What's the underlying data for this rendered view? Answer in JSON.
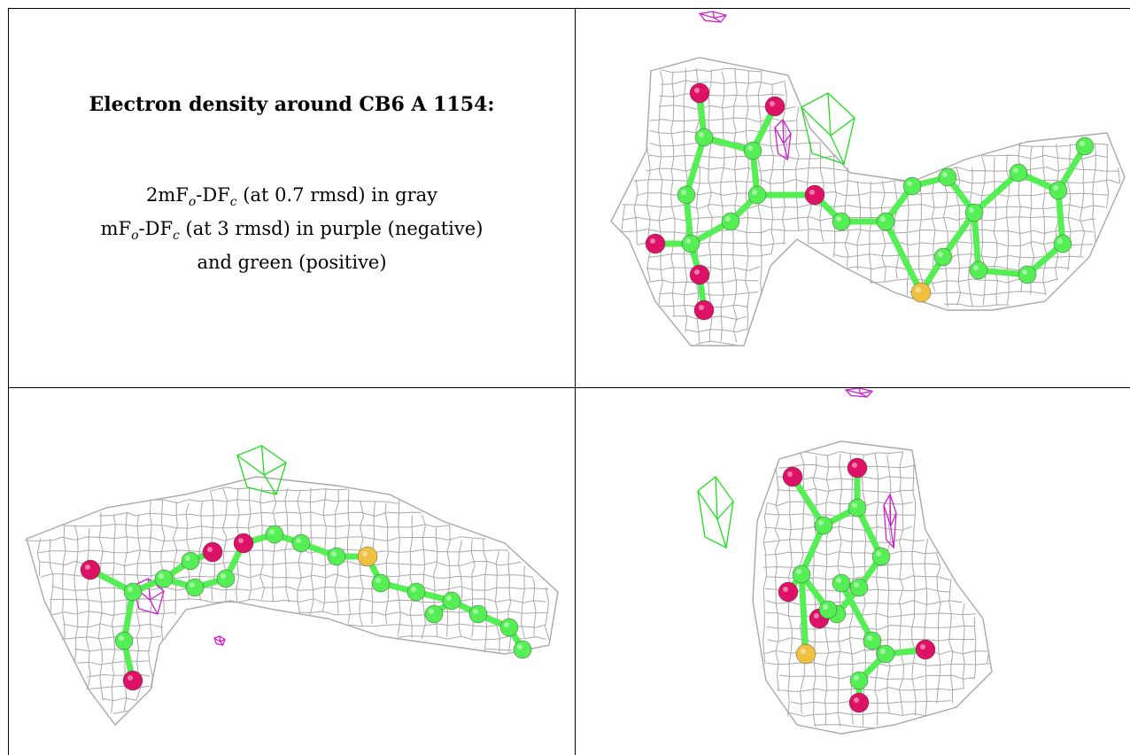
{
  "title": "Electron density around CB6 A 1154:",
  "legend": {
    "line1": {
      "a": "2mF",
      "sub1": "o",
      "b": "-DF",
      "sub2": "c",
      "c": " (at 0.7 rmsd) in gray"
    },
    "line2": {
      "a": "mF",
      "sub1": "o",
      "b": "-DF",
      "sub2": "c",
      "c": " (at 3 rmsd) in purple (negative)"
    },
    "line3": "and green (positive)"
  },
  "colors": {
    "mesh": "#9a9a9a",
    "positive": "#22dd22",
    "negative": "#cc22cc",
    "carbon": "#55ee55",
    "oxygen": "#dd1166",
    "sulfur": "#f0c040"
  },
  "views": [
    "view-top-right",
    "view-bottom-left",
    "view-bottom-right"
  ]
}
